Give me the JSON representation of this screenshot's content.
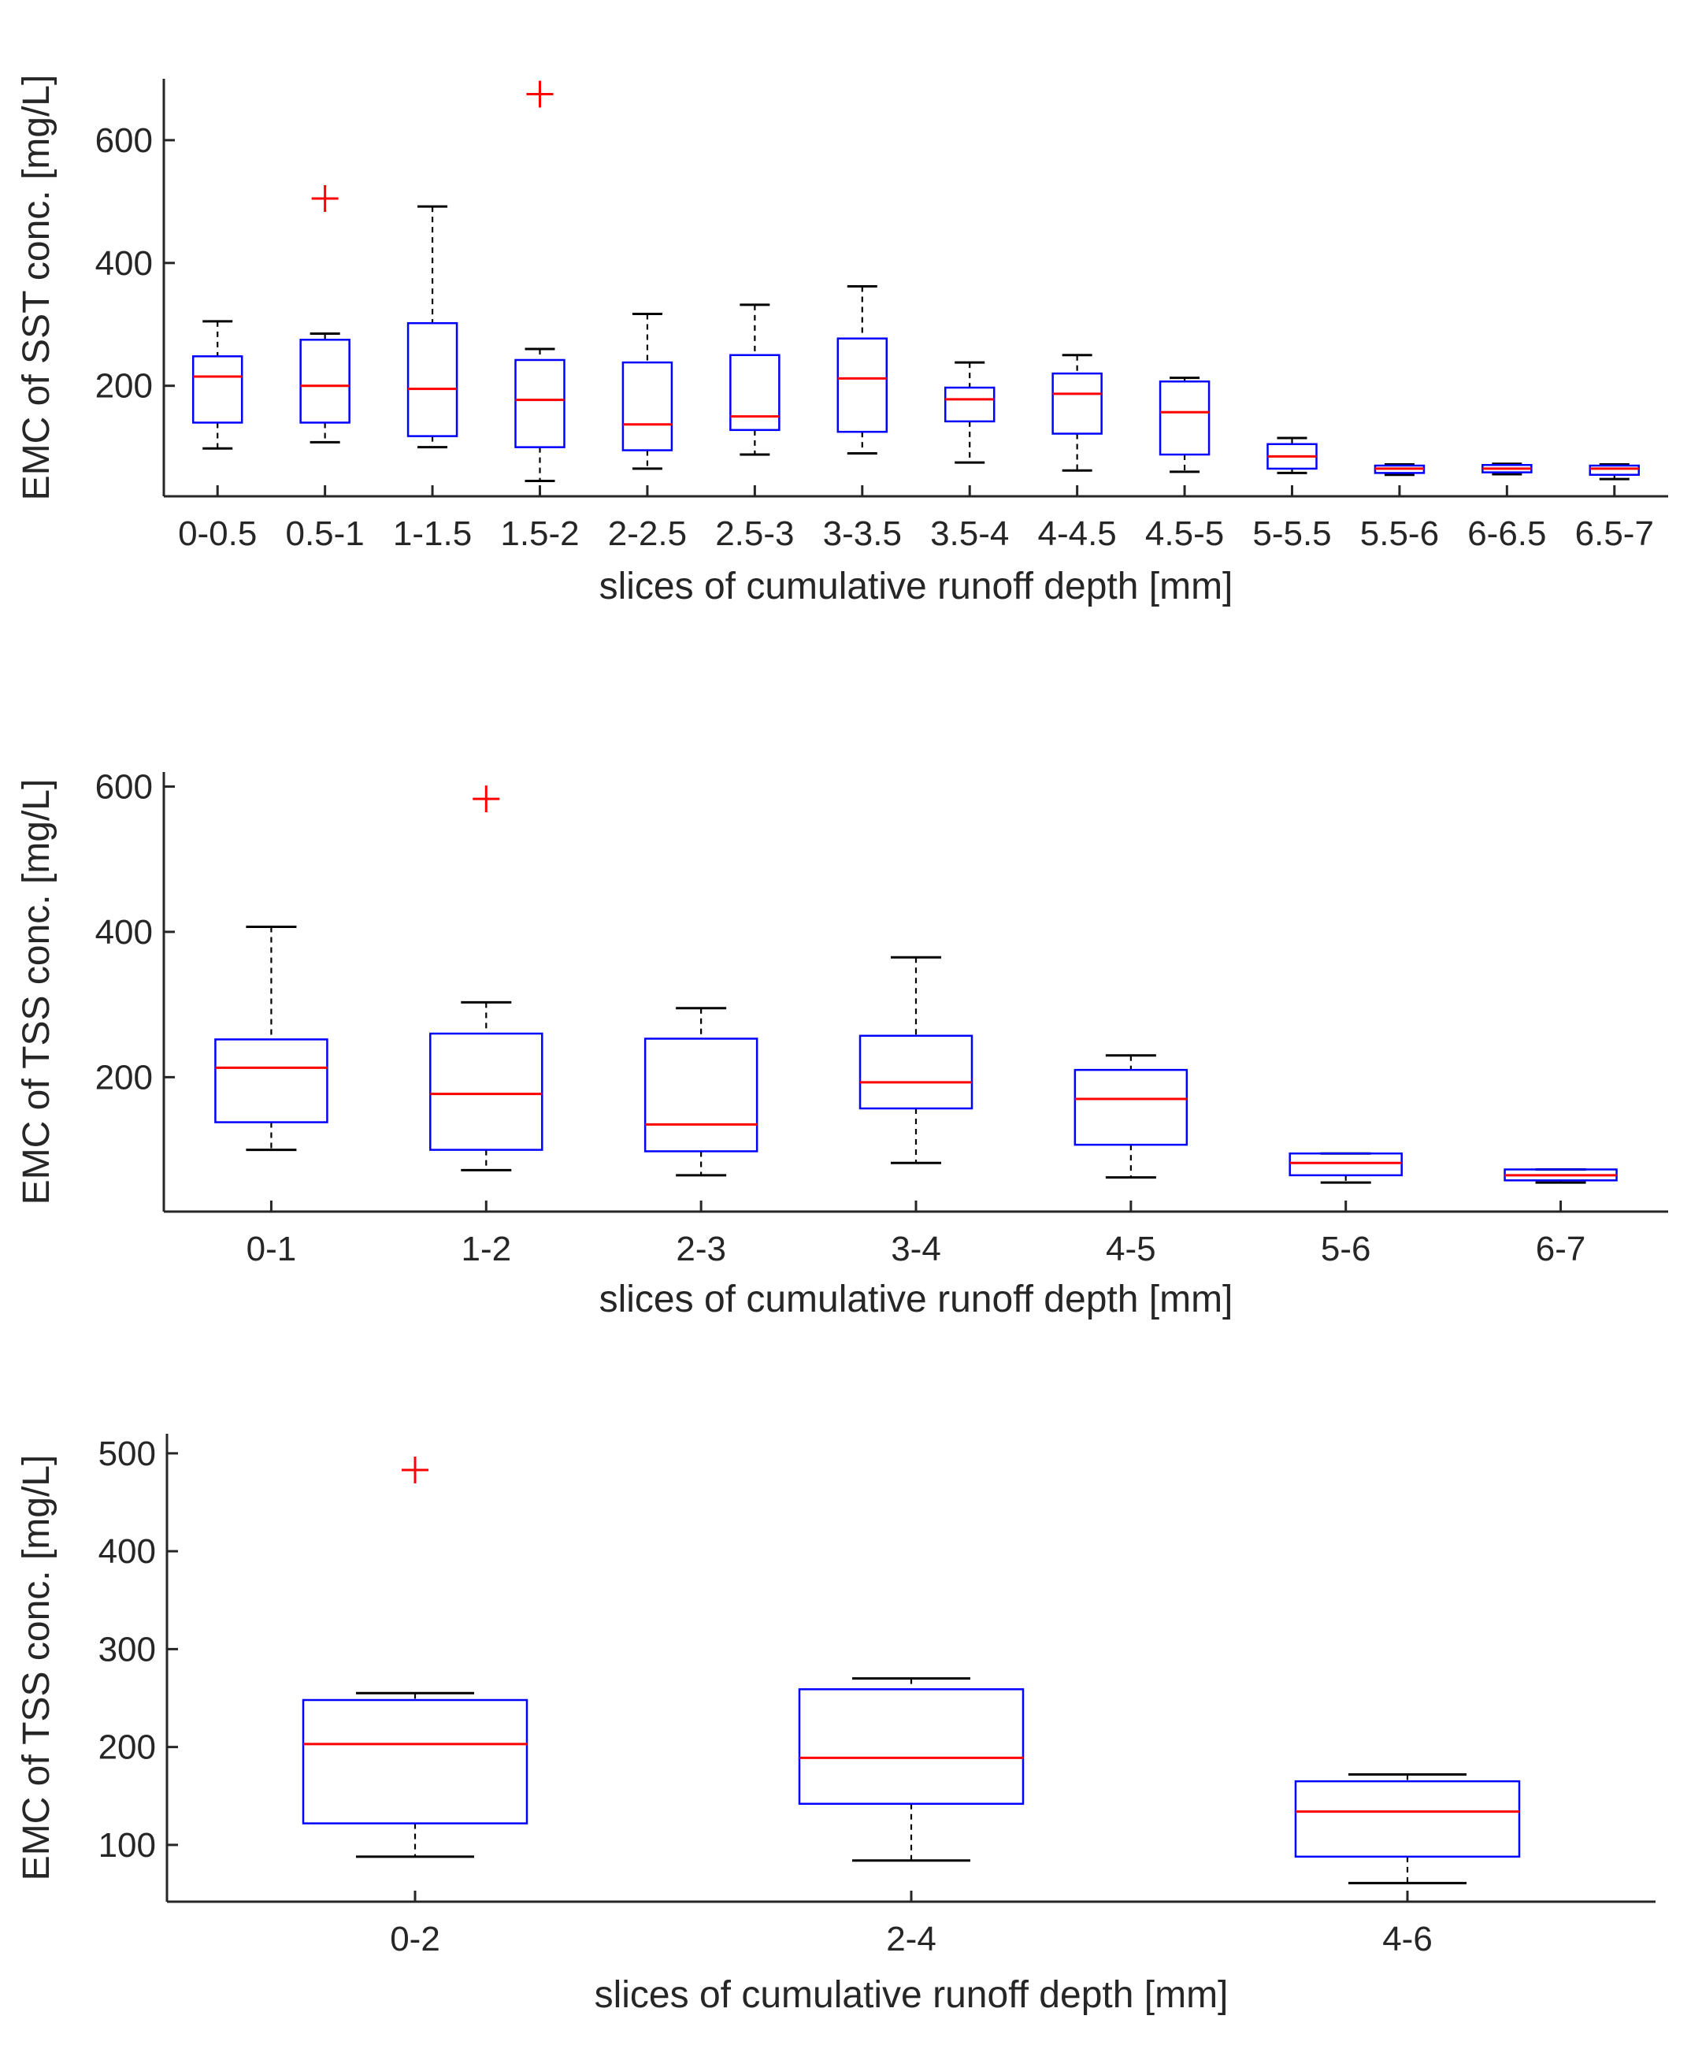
{
  "chart_data": [
    {
      "type": "box",
      "xlabel": "slices of cumulative runoff depth [mm]",
      "ylabel": "EMC of SST conc. [mg/L]",
      "ylim": [
        20,
        700
      ],
      "yticks": [
        200,
        400,
        600
      ],
      "categories": [
        "0-0.5",
        "0.5-1",
        "1-1.5",
        "1.5-2",
        "2-2.5",
        "2.5-3",
        "3-3.5",
        "3.5-4",
        "4-4.5",
        "4.5-5",
        "5-5.5",
        "5.5-6",
        "6-6.5",
        "6.5-7"
      ],
      "boxes": [
        {
          "whisker_low": 98,
          "q1": 140,
          "median": 215,
          "q3": 248,
          "whisker_high": 305,
          "outliers": []
        },
        {
          "whisker_low": 108,
          "q1": 140,
          "median": 200,
          "q3": 275,
          "whisker_high": 285,
          "outliers": [
            505
          ]
        },
        {
          "whisker_low": 100,
          "q1": 118,
          "median": 195,
          "q3": 302,
          "whisker_high": 492,
          "outliers": []
        },
        {
          "whisker_low": 45,
          "q1": 100,
          "median": 177,
          "q3": 242,
          "whisker_high": 260,
          "outliers": [
            675
          ]
        },
        {
          "whisker_low": 65,
          "q1": 95,
          "median": 137,
          "q3": 238,
          "whisker_high": 317,
          "outliers": []
        },
        {
          "whisker_low": 88,
          "q1": 128,
          "median": 150,
          "q3": 250,
          "whisker_high": 332,
          "outliers": []
        },
        {
          "whisker_low": 90,
          "q1": 125,
          "median": 212,
          "q3": 277,
          "whisker_high": 362,
          "outliers": []
        },
        {
          "whisker_low": 75,
          "q1": 142,
          "median": 178,
          "q3": 197,
          "whisker_high": 238,
          "outliers": []
        },
        {
          "whisker_low": 62,
          "q1": 122,
          "median": 187,
          "q3": 220,
          "whisker_high": 250,
          "outliers": []
        },
        {
          "whisker_low": 60,
          "q1": 88,
          "median": 157,
          "q3": 207,
          "whisker_high": 213,
          "outliers": []
        },
        {
          "whisker_low": 58,
          "q1": 65,
          "median": 85,
          "q3": 105,
          "whisker_high": 115,
          "outliers": []
        },
        {
          "whisker_low": 55,
          "q1": 58,
          "median": 65,
          "q3": 70,
          "whisker_high": 72,
          "outliers": []
        },
        {
          "whisker_low": 56,
          "q1": 59,
          "median": 65,
          "q3": 71,
          "whisker_high": 73,
          "outliers": []
        },
        {
          "whisker_low": 48,
          "q1": 55,
          "median": 65,
          "q3": 70,
          "whisker_high": 72,
          "outliers": []
        }
      ]
    },
    {
      "type": "box",
      "xlabel": "slices of cumulative runoff depth [mm]",
      "ylabel": "EMC of TSS conc. [mg/L]",
      "ylim": [
        15,
        620
      ],
      "yticks": [
        200,
        400,
        600
      ],
      "categories": [
        "0-1",
        "1-2",
        "2-3",
        "3-4",
        "4-5",
        "5-6",
        "6-7"
      ],
      "boxes": [
        {
          "whisker_low": 100,
          "q1": 138,
          "median": 213,
          "q3": 252,
          "whisker_high": 407,
          "outliers": []
        },
        {
          "whisker_low": 72,
          "q1": 100,
          "median": 177,
          "q3": 260,
          "whisker_high": 303,
          "outliers": [
            583
          ]
        },
        {
          "whisker_low": 65,
          "q1": 98,
          "median": 135,
          "q3": 253,
          "whisker_high": 295,
          "outliers": []
        },
        {
          "whisker_low": 82,
          "q1": 157,
          "median": 193,
          "q3": 257,
          "whisker_high": 365,
          "outliers": []
        },
        {
          "whisker_low": 62,
          "q1": 107,
          "median": 170,
          "q3": 210,
          "whisker_high": 230,
          "outliers": []
        },
        {
          "whisker_low": 55,
          "q1": 65,
          "median": 82,
          "q3": 95,
          "whisker_high": 95,
          "outliers": []
        },
        {
          "whisker_low": 55,
          "q1": 58,
          "median": 65,
          "q3": 73,
          "whisker_high": 73,
          "outliers": []
        }
      ]
    },
    {
      "type": "box",
      "xlabel": "slices of cumulative runoff depth [mm]",
      "ylabel": "EMC of TSS conc. [mg/L]",
      "ylim": [
        42,
        520
      ],
      "yticks": [
        100,
        200,
        300,
        400,
        500
      ],
      "categories": [
        "0-2",
        "2-4",
        "4-6"
      ],
      "boxes": [
        {
          "whisker_low": 88,
          "q1": 122,
          "median": 203,
          "q3": 248,
          "whisker_high": 255,
          "outliers": [
            483
          ]
        },
        {
          "whisker_low": 84,
          "q1": 142,
          "median": 189,
          "q3": 259,
          "whisker_high": 270,
          "outliers": []
        },
        {
          "whisker_low": 61,
          "q1": 88,
          "median": 134,
          "q3": 165,
          "whisker_high": 172,
          "outliers": []
        }
      ]
    }
  ]
}
